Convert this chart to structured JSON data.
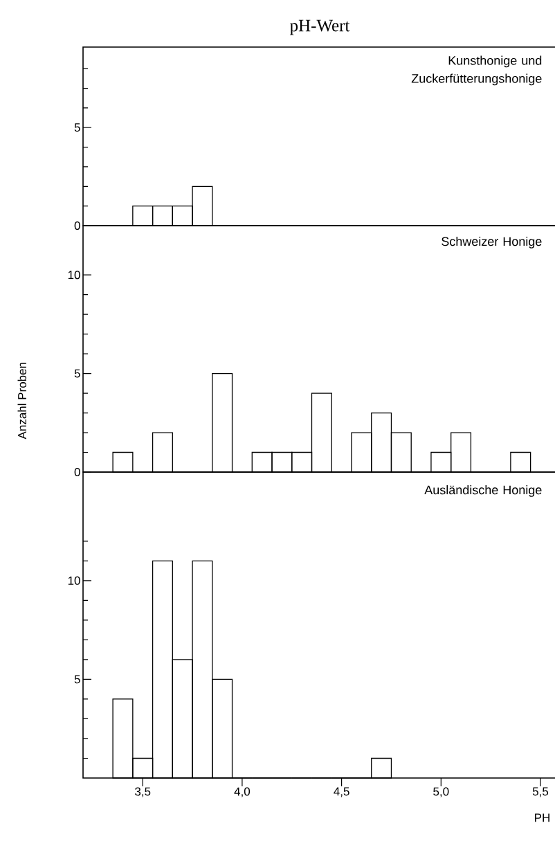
{
  "chart_data": [
    {
      "type": "histogram",
      "title": "pH-Wert",
      "color": "#000000",
      "annotations": [
        "Kunsthonige und Zuckerfütterungshonige"
      ],
      "bins": [
        3.45,
        3.55,
        3.65,
        3.75,
        3.85
      ],
      "values": [
        1,
        1,
        1,
        2
      ],
      "xlim": [
        3.2,
        5.58
      ],
      "ylim": [
        0,
        9.1
      ],
      "tick_labels": "y",
      "yticks": [
        0,
        {
          "value": 1,
          "label": null
        },
        {
          "value": 2,
          "label": null
        },
        {
          "value": 3,
          "label": null
        },
        {
          "value": 4,
          "label": null
        },
        5,
        {
          "value": 6,
          "label": null
        },
        {
          "value": 7,
          "label": null
        },
        {
          "value": 8,
          "label": null
        }
      ]
    },
    {
      "type": "histogram",
      "ylabel": "Anzahl Proben",
      "color": "#000000",
      "annotations": [
        "Schweizer Honige"
      ],
      "bins": [
        3.35,
        3.45,
        3.55,
        3.65,
        3.75,
        3.85,
        3.95,
        4.05,
        4.15,
        4.25,
        4.35,
        4.45,
        4.55,
        4.65,
        4.75,
        4.85,
        4.95,
        5.05,
        5.15,
        5.25,
        5.35,
        5.45
      ],
      "values": [
        1,
        0,
        2,
        0,
        0,
        5,
        0,
        1,
        1,
        1,
        4,
        0,
        2,
        3,
        2,
        0,
        1,
        2,
        0,
        0,
        1
      ],
      "xlim": [
        3.2,
        5.58
      ],
      "ylim": [
        0,
        12.5
      ],
      "tick_labels": "y",
      "yticks": [
        0,
        {
          "value": 1,
          "label": null
        },
        {
          "value": 2,
          "label": null
        },
        {
          "value": 3,
          "label": null
        },
        {
          "value": 4,
          "label": null
        },
        5,
        {
          "value": 6,
          "label": null
        },
        {
          "value": 7,
          "label": null
        },
        {
          "value": 8,
          "label": null
        },
        {
          "value": 9,
          "label": null
        },
        10
      ]
    },
    {
      "type": "histogram",
      "xlabel": "PH",
      "color": "#000000",
      "annotations": [
        "Ausländische Honige"
      ],
      "bins": [
        3.35,
        3.45,
        3.55,
        3.65,
        3.75,
        3.85,
        3.95,
        4.05,
        4.15,
        4.25,
        4.35,
        4.45,
        4.55,
        4.65,
        4.75
      ],
      "values": [
        4,
        1,
        11,
        6,
        11,
        5,
        0,
        0,
        0,
        0,
        0,
        0,
        0,
        1
      ],
      "xlim": [
        3.2,
        5.58
      ],
      "ylim": [
        0,
        15.5
      ],
      "xticks": [
        {
          "value": 3.5,
          "label": "3,5"
        },
        {
          "value": 4.0,
          "label": "4,0"
        },
        {
          "value": 4.5,
          "label": "4,5"
        },
        {
          "value": 5.0,
          "label": "5,0"
        },
        {
          "value": 5.5,
          "label": "5,5"
        }
      ],
      "yticks": [
        {
          "value": 1,
          "label": null
        },
        {
          "value": 2,
          "label": null
        },
        {
          "value": 3,
          "label": null
        },
        {
          "value": 4,
          "label": null
        },
        5,
        {
          "value": 6,
          "label": null
        },
        {
          "value": 7,
          "label": null
        },
        {
          "value": 8,
          "label": null
        },
        {
          "value": 9,
          "label": null
        },
        10,
        {
          "value": 11,
          "label": null
        },
        {
          "value": 12,
          "label": null
        }
      ]
    }
  ]
}
